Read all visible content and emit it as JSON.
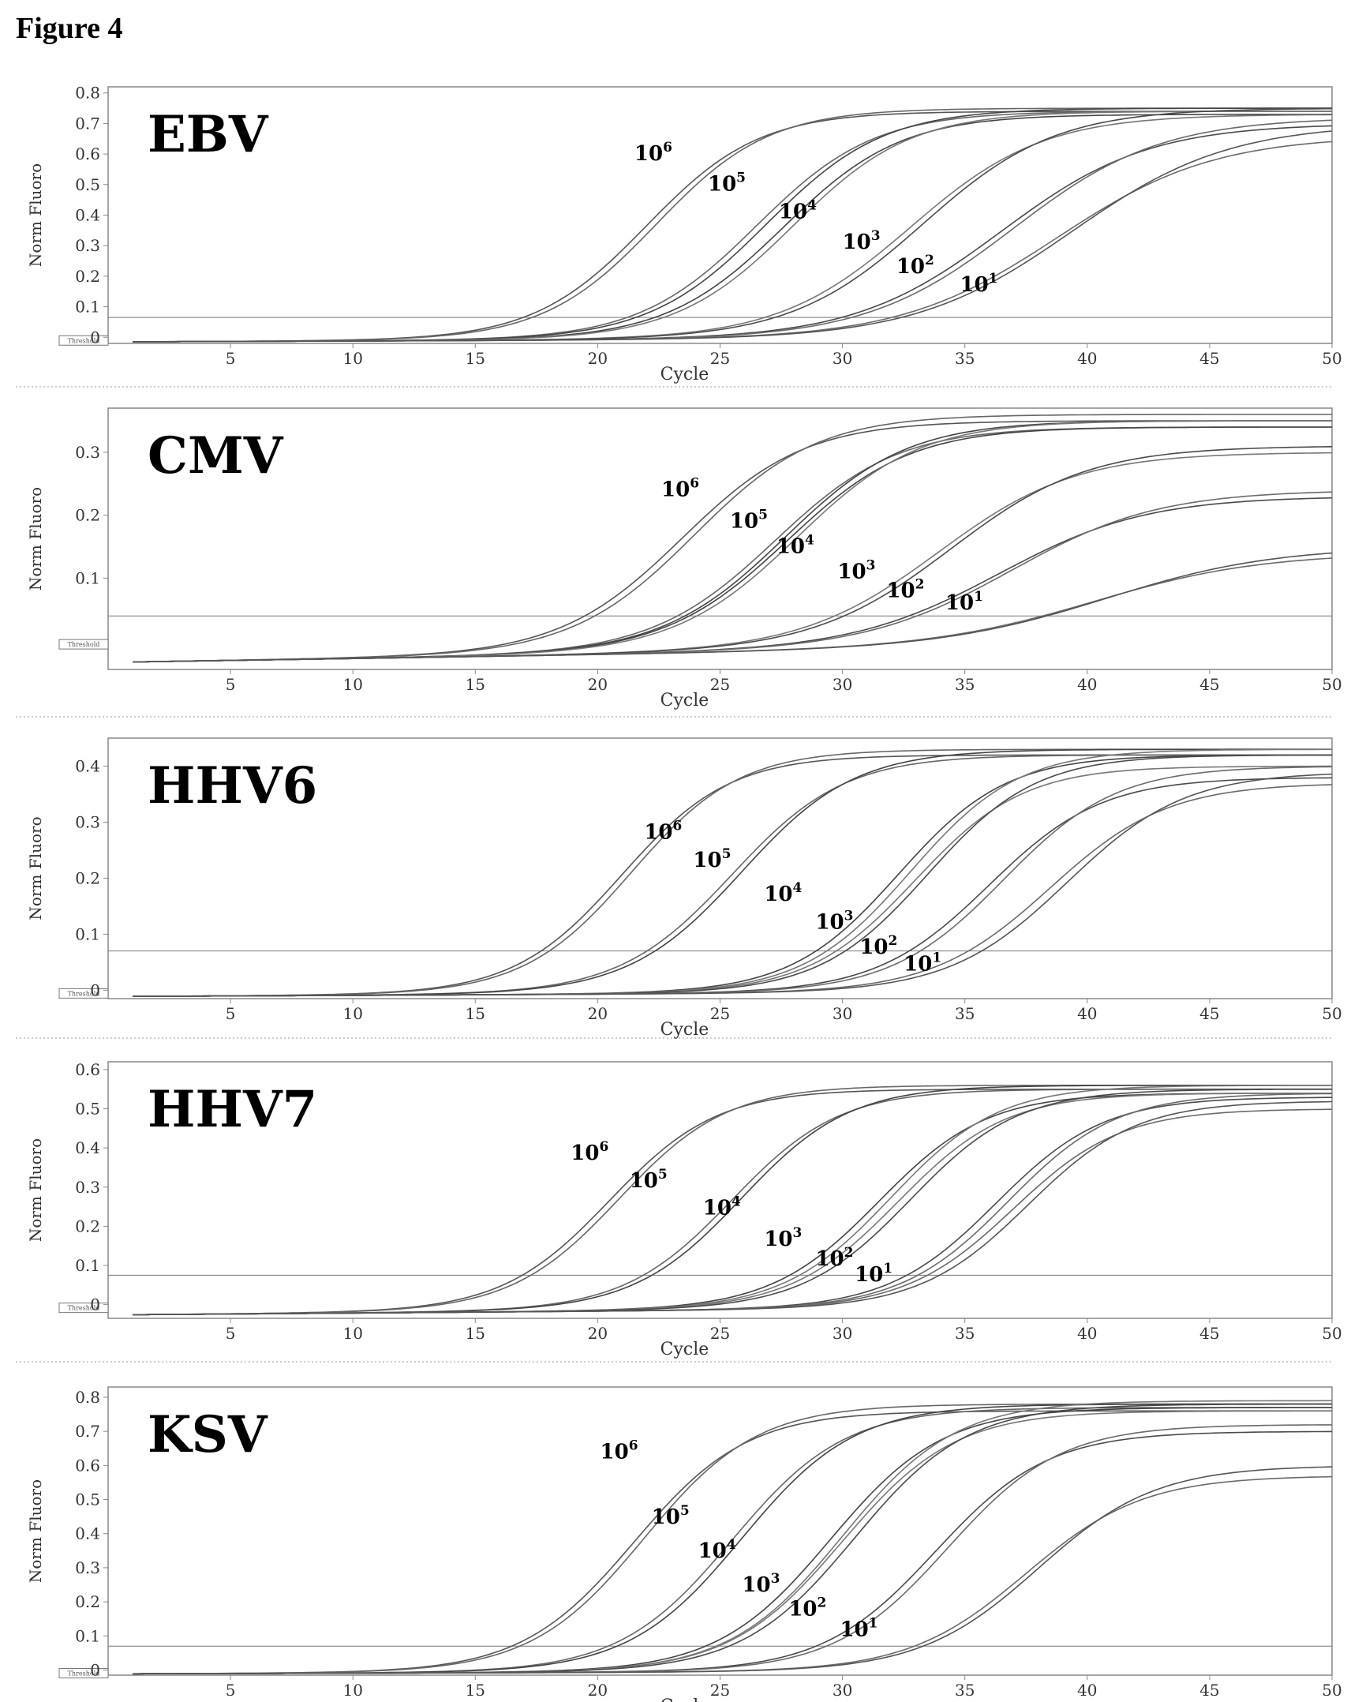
{
  "figure": {
    "title": "Figure 4"
  },
  "threshold_label": "Threshold",
  "chart_data": [
    {
      "type": "line",
      "title": "EBV",
      "xlabel": "Cycle",
      "ylabel": "Norm Fluoro",
      "xlim": [
        0,
        50
      ],
      "ylim": [
        -0.02,
        0.82
      ],
      "xticks": [
        5,
        10,
        15,
        20,
        25,
        30,
        35,
        40,
        45,
        50
      ],
      "yticks": [
        0,
        0.1,
        0.2,
        0.3,
        0.4,
        0.5,
        0.6,
        0.7,
        0.8
      ],
      "ytick_labels": [
        "0",
        "0.1",
        "0.2",
        "0.3",
        "0.4",
        "0.5",
        "0.6",
        "0.7",
        "0.8"
      ],
      "threshold": 0.065,
      "grid": false,
      "series": [
        {
          "name": "10^6",
          "midpoints": [
            22.0,
            22.4
          ],
          "plateau": [
            0.74,
            0.75
          ],
          "slope": 2.3,
          "label_xy": [
            21.5,
            0.58
          ]
        },
        {
          "name": "10^5",
          "midpoints": [
            26.5,
            26.9
          ],
          "plateau": [
            0.74,
            0.75
          ],
          "slope": 2.4,
          "label_xy": [
            24.5,
            0.48
          ]
        },
        {
          "name": "10^4",
          "midpoints": [
            27.6,
            28.0
          ],
          "plateau": [
            0.73,
            0.74
          ],
          "slope": 2.4,
          "label_xy": [
            27.4,
            0.39
          ]
        },
        {
          "name": "10^3",
          "midpoints": [
            32.8,
            33.3
          ],
          "plateau": [
            0.73,
            0.75
          ],
          "slope": 2.7,
          "label_xy": [
            30.0,
            0.29
          ]
        },
        {
          "name": "10^2",
          "midpoints": [
            36.5,
            37.0
          ],
          "plateau": [
            0.7,
            0.72
          ],
          "slope": 3.0,
          "label_xy": [
            32.2,
            0.21
          ]
        },
        {
          "name": "10^1",
          "midpoints": [
            38.8,
            39.4
          ],
          "plateau": [
            0.66,
            0.7
          ],
          "slope": 3.2,
          "label_xy": [
            34.8,
            0.15
          ]
        }
      ]
    },
    {
      "type": "line",
      "title": "CMV",
      "xlabel": "Cycle",
      "ylabel": "Norm Fluoro",
      "xlim": [
        0,
        50
      ],
      "ylim": [
        -0.045,
        0.37
      ],
      "xticks": [
        5,
        10,
        15,
        20,
        25,
        30,
        35,
        40,
        45,
        50
      ],
      "yticks": [
        0.1,
        0.2,
        0.3
      ],
      "ytick_labels": [
        "0.1",
        "0.2",
        "0.3"
      ],
      "threshold": 0.04,
      "grid": false,
      "series": [
        {
          "name": "10^6",
          "midpoints": [
            23.5,
            24.0
          ],
          "plateau": [
            0.35,
            0.36
          ],
          "slope": 2.5,
          "label_xy": [
            22.6,
            0.23
          ]
        },
        {
          "name": "10^5",
          "midpoints": [
            27.3,
            27.7
          ],
          "plateau": [
            0.34,
            0.35
          ],
          "slope": 2.5,
          "label_xy": [
            25.4,
            0.18
          ]
        },
        {
          "name": "10^4",
          "midpoints": [
            27.8,
            28.2
          ],
          "plateau": [
            0.34,
            0.35
          ],
          "slope": 2.5,
          "label_xy": [
            27.3,
            0.14
          ]
        },
        {
          "name": "10^3",
          "midpoints": [
            34.0,
            34.5
          ],
          "plateau": [
            0.3,
            0.31
          ],
          "slope": 2.8,
          "label_xy": [
            29.8,
            0.1
          ]
        },
        {
          "name": "10^2",
          "midpoints": [
            36.5,
            37.0
          ],
          "plateau": [
            0.23,
            0.24
          ],
          "slope": 3.0,
          "label_xy": [
            31.8,
            0.07
          ]
        },
        {
          "name": "10^1",
          "midpoints": [
            40.5,
            41.0
          ],
          "plateau": [
            0.14,
            0.15
          ],
          "slope": 3.4,
          "label_xy": [
            34.2,
            0.05
          ]
        }
      ]
    },
    {
      "type": "line",
      "title": "HHV6",
      "xlabel": "Cycle",
      "ylabel": "Norm Fluoro",
      "xlim": [
        0,
        50
      ],
      "ylim": [
        -0.015,
        0.45
      ],
      "xticks": [
        5,
        10,
        15,
        20,
        25,
        30,
        35,
        40,
        45,
        50
      ],
      "yticks": [
        0,
        0.1,
        0.2,
        0.3,
        0.4
      ],
      "ytick_labels": [
        "0",
        "0.1",
        "0.2",
        "0.3",
        "0.4"
      ],
      "threshold": 0.07,
      "grid": false,
      "series": [
        {
          "name": "10^6",
          "midpoints": [
            21.0,
            21.4
          ],
          "plateau": [
            0.42,
            0.43
          ],
          "slope": 2.2,
          "label_xy": [
            21.9,
            0.27
          ]
        },
        {
          "name": "10^5",
          "midpoints": [
            25.5,
            25.9
          ],
          "plateau": [
            0.42,
            0.43
          ],
          "slope": 2.3,
          "label_xy": [
            23.9,
            0.22
          ]
        },
        {
          "name": "10^4",
          "midpoints": [
            32.3,
            32.8
          ],
          "plateau": [
            0.42,
            0.43
          ],
          "slope": 2.2,
          "label_xy": [
            26.8,
            0.16
          ]
        },
        {
          "name": "10^3",
          "midpoints": [
            33.0,
            33.5
          ],
          "plateau": [
            0.4,
            0.42
          ],
          "slope": 2.2,
          "label_xy": [
            28.9,
            0.11
          ]
        },
        {
          "name": "10^2",
          "midpoints": [
            36.0,
            36.6
          ],
          "plateau": [
            0.38,
            0.4
          ],
          "slope": 2.3,
          "label_xy": [
            30.7,
            0.065
          ]
        },
        {
          "name": "10^1",
          "midpoints": [
            38.5,
            39.2
          ],
          "plateau": [
            0.37,
            0.39
          ],
          "slope": 2.4,
          "label_xy": [
            32.5,
            0.035
          ]
        }
      ]
    },
    {
      "type": "line",
      "title": "HHV7",
      "xlabel": "Cycle",
      "ylabel": "Norm Fluoro",
      "xlim": [
        0,
        50
      ],
      "ylim": [
        -0.035,
        0.62
      ],
      "xticks": [
        5,
        10,
        15,
        20,
        25,
        30,
        35,
        40,
        45,
        50
      ],
      "yticks": [
        0,
        0.1,
        0.2,
        0.3,
        0.4,
        0.5,
        0.6
      ],
      "ytick_labels": [
        "0",
        "0.1",
        "0.2",
        "0.3",
        "0.4",
        "0.5",
        "0.6"
      ],
      "threshold": 0.075,
      "grid": false,
      "series": [
        {
          "name": "10^6",
          "midpoints": [
            20.5,
            20.9
          ],
          "plateau": [
            0.55,
            0.56
          ],
          "slope": 2.2,
          "label_xy": [
            18.9,
            0.37
          ]
        },
        {
          "name": "10^5",
          "midpoints": [
            25.5,
            25.9
          ],
          "plateau": [
            0.55,
            0.56
          ],
          "slope": 2.2,
          "label_xy": [
            21.3,
            0.3
          ]
        },
        {
          "name": "10^4",
          "midpoints": [
            31.5,
            32.0
          ],
          "plateau": [
            0.54,
            0.56
          ],
          "slope": 2.2,
          "label_xy": [
            24.3,
            0.23
          ]
        },
        {
          "name": "10^3",
          "midpoints": [
            32.3,
            32.8
          ],
          "plateau": [
            0.54,
            0.55
          ],
          "slope": 2.2,
          "label_xy": [
            26.8,
            0.15
          ]
        },
        {
          "name": "10^2",
          "midpoints": [
            36.3,
            36.8
          ],
          "plateau": [
            0.53,
            0.54
          ],
          "slope": 2.2,
          "label_xy": [
            28.9,
            0.1
          ]
        },
        {
          "name": "10^1",
          "midpoints": [
            37.0,
            37.6
          ],
          "plateau": [
            0.5,
            0.52
          ],
          "slope": 2.2,
          "label_xy": [
            30.5,
            0.06
          ]
        }
      ]
    },
    {
      "type": "line",
      "title": "KSV",
      "xlabel": "Cycle",
      "ylabel": "Norm Fluoro",
      "xlim": [
        0,
        50
      ],
      "ylim": [
        -0.015,
        0.83
      ],
      "xticks": [
        5,
        10,
        15,
        20,
        25,
        30,
        35,
        40,
        45,
        50
      ],
      "yticks": [
        0,
        0.1,
        0.2,
        0.3,
        0.4,
        0.5,
        0.6,
        0.7,
        0.8
      ],
      "ytick_labels": [
        "0",
        "0.1",
        "0.2",
        "0.3",
        "0.4",
        "0.5",
        "0.6",
        "0.7",
        "0.8"
      ],
      "threshold": 0.07,
      "grid": false,
      "series": [
        {
          "name": "10^6",
          "midpoints": [
            21.5,
            21.9
          ],
          "plateau": [
            0.76,
            0.78
          ],
          "slope": 2.3,
          "label_xy": [
            20.1,
            0.62
          ]
        },
        {
          "name": "10^5",
          "midpoints": [
            25.5,
            25.9
          ],
          "plateau": [
            0.77,
            0.78
          ],
          "slope": 2.3,
          "label_xy": [
            22.2,
            0.43
          ]
        },
        {
          "name": "10^4",
          "midpoints": [
            29.5,
            30.0
          ],
          "plateau": [
            0.77,
            0.79
          ],
          "slope": 2.3,
          "label_xy": [
            24.1,
            0.33
          ]
        },
        {
          "name": "10^3",
          "midpoints": [
            30.0,
            30.5
          ],
          "plateau": [
            0.76,
            0.78
          ],
          "slope": 2.3,
          "label_xy": [
            25.9,
            0.23
          ]
        },
        {
          "name": "10^2",
          "midpoints": [
            33.8,
            34.3
          ],
          "plateau": [
            0.7,
            0.72
          ],
          "slope": 2.3,
          "label_xy": [
            27.8,
            0.16
          ]
        },
        {
          "name": "10^1",
          "midpoints": [
            37.5,
            38.0
          ],
          "plateau": [
            0.57,
            0.6
          ],
          "slope": 2.4,
          "label_xy": [
            29.9,
            0.1
          ]
        }
      ]
    }
  ]
}
